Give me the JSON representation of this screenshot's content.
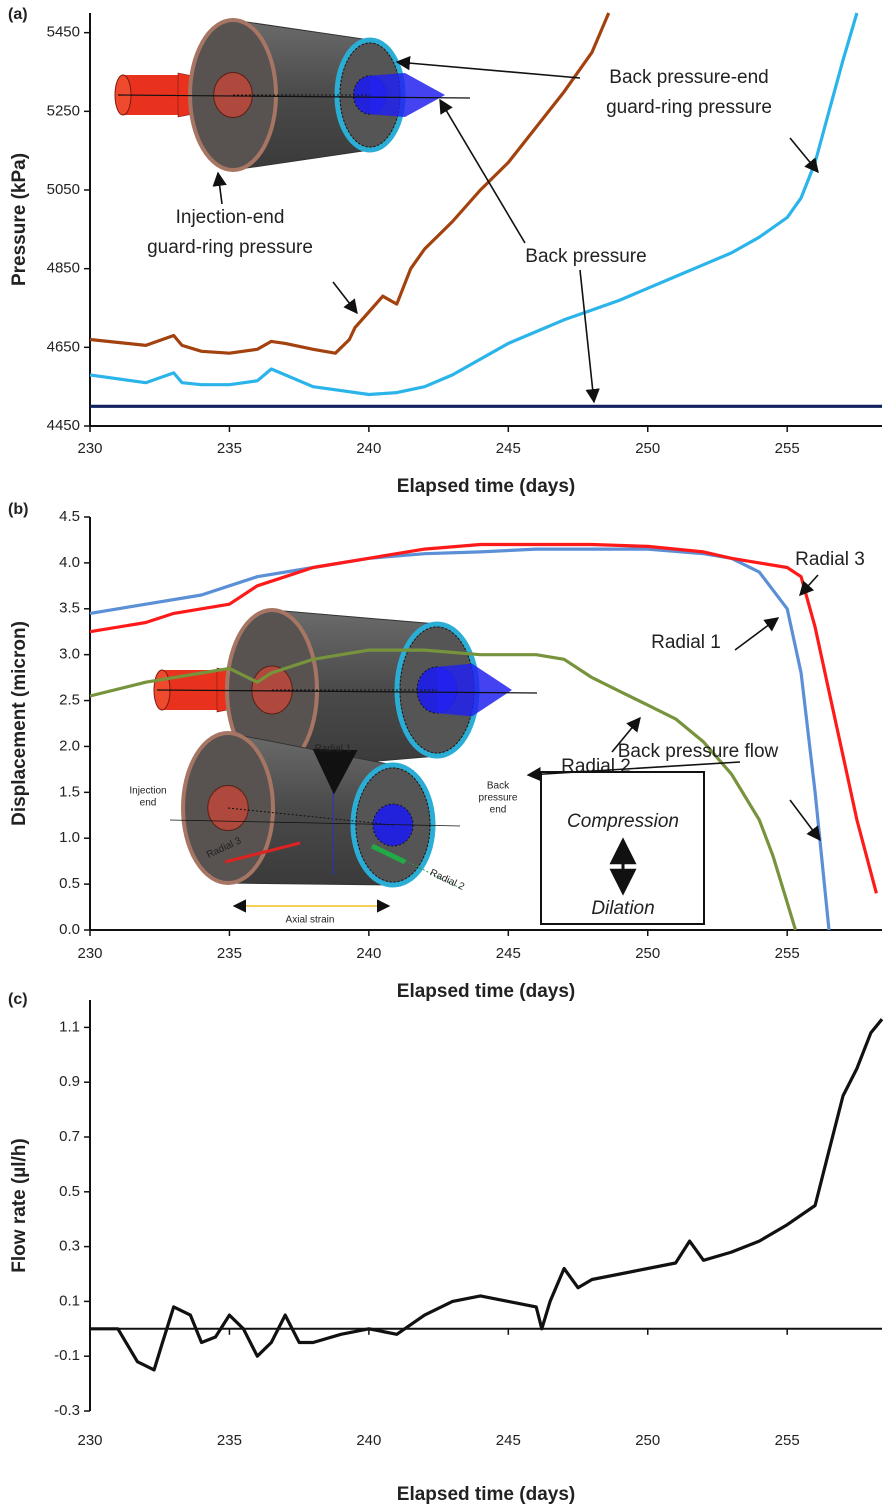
{
  "chart_data": [
    {
      "type": "line",
      "panel_label": "(a)",
      "x_label": "Elapsed time (days)",
      "y_label": "Pressure (kPa)",
      "xlim": [
        230,
        258.4
      ],
      "xticks": [
        230,
        235,
        240,
        245,
        250,
        255
      ],
      "ylim": [
        4450,
        5500
      ],
      "yticks": [
        4450,
        4650,
        4850,
        5050,
        5250,
        5450
      ],
      "series": [
        {
          "name": [
            "Injection-end",
            "guard-ring pressure"
          ],
          "color": "#a3420f",
          "x": [
            230,
            232,
            233,
            233.3,
            234,
            235,
            236,
            236.5,
            237,
            238,
            238.8,
            239.3,
            239.5,
            240,
            240.5,
            241,
            241.5,
            242,
            243,
            244,
            245,
            246,
            247,
            248,
            248.6
          ],
          "values": [
            4670,
            4655,
            4680,
            4655,
            4640,
            4635,
            4645,
            4665,
            4660,
            4645,
            4635,
            4670,
            4700,
            4740,
            4780,
            4760,
            4850,
            4900,
            4970,
            5050,
            5120,
            5210,
            5300,
            5400,
            5500
          ]
        },
        {
          "name": [
            "Back pressure-end",
            "guard-ring pressure"
          ],
          "color": "#2bb4ea",
          "x": [
            230,
            232,
            233,
            233.3,
            234,
            235,
            236,
            236.5,
            237,
            238,
            239,
            240,
            241,
            242,
            243,
            244,
            245,
            246,
            247,
            248,
            249,
            250,
            251,
            252,
            253,
            254,
            255,
            255.5,
            256,
            256.5,
            257,
            257.5
          ],
          "values": [
            4580,
            4560,
            4585,
            4560,
            4555,
            4555,
            4565,
            4595,
            4580,
            4550,
            4540,
            4530,
            4535,
            4550,
            4580,
            4620,
            4660,
            4690,
            4720,
            4745,
            4770,
            4800,
            4830,
            4860,
            4890,
            4930,
            4980,
            5030,
            5120,
            5250,
            5380,
            5500
          ]
        },
        {
          "name": [
            "Back pressure"
          ],
          "color": "#122060",
          "x": [
            230,
            235,
            240,
            245,
            250,
            255,
            258.4
          ],
          "values": [
            4500,
            4500,
            4500,
            4500,
            4500,
            4500,
            4500
          ]
        }
      ]
    },
    {
      "type": "line",
      "panel_label": "(b)",
      "x_label": "Elapsed time (days)",
      "y_label": "Displacement (micron)",
      "xlim": [
        230,
        258.4
      ],
      "xticks": [
        230,
        235,
        240,
        245,
        250,
        255
      ],
      "ylim": [
        0,
        4.5
      ],
      "yticks": [
        {
          "value": 0,
          "label": "0.0"
        },
        0.5,
        {
          "value": 1,
          "label": "1.0"
        },
        1.5,
        {
          "value": 2,
          "label": "2.0"
        },
        2.5,
        {
          "value": 3,
          "label": "3.0"
        },
        3.5,
        {
          "value": 4,
          "label": "4.0"
        },
        4.5
      ],
      "series": [
        {
          "name": "Radial 1",
          "color": "#5b8fd6",
          "x": [
            230,
            232,
            234,
            235,
            236,
            238,
            240,
            242,
            244,
            246,
            248,
            250,
            252,
            253,
            254,
            255,
            255.5,
            256,
            256.5
          ],
          "values": [
            3.45,
            3.55,
            3.65,
            3.75,
            3.85,
            3.95,
            4.05,
            4.1,
            4.12,
            4.15,
            4.15,
            4.15,
            4.1,
            4.05,
            3.9,
            3.5,
            2.8,
            1.5,
            0
          ]
        },
        {
          "name": "Radial 2",
          "color": "#77933c",
          "x": [
            230,
            232,
            234,
            235,
            236,
            236.5,
            238,
            240,
            242,
            244,
            246,
            247,
            248,
            249,
            250,
            251,
            252,
            253,
            254,
            254.5,
            255,
            255.3
          ],
          "values": [
            2.55,
            2.7,
            2.8,
            2.85,
            2.7,
            2.8,
            2.95,
            3.05,
            3.05,
            3.0,
            3.0,
            2.95,
            2.75,
            2.6,
            2.45,
            2.3,
            2.05,
            1.7,
            1.2,
            0.8,
            0.3,
            0
          ]
        },
        {
          "name": "Radial 3",
          "color": "#ff1a1a",
          "x": [
            230,
            232,
            233,
            235,
            236,
            237,
            238,
            240,
            242,
            244,
            246,
            248,
            250,
            252,
            253,
            254,
            255,
            255.5,
            256,
            256.5,
            257,
            257.5,
            258.2
          ],
          "values": [
            3.25,
            3.35,
            3.45,
            3.55,
            3.75,
            3.85,
            3.95,
            4.05,
            4.15,
            4.2,
            4.2,
            4.2,
            4.18,
            4.12,
            4.05,
            4.0,
            3.95,
            3.85,
            3.3,
            2.6,
            1.9,
            1.2,
            0.4
          ]
        }
      ],
      "inset_labels": [
        "Radial 1",
        "Injection",
        "end",
        "Back",
        "pressure",
        "end",
        "Radial 3",
        "Radial 2",
        "Axial strain"
      ],
      "box": [
        "Compression",
        "Dilation"
      ]
    },
    {
      "type": "line",
      "panel_label": "(c)",
      "x_label": "Elapsed time (days)",
      "y_label": "Flow rate (µl/h)",
      "xlim": [
        230,
        258.4
      ],
      "xticks": [
        230,
        235,
        240,
        245,
        250,
        255
      ],
      "ylim": [
        -0.3,
        1.2
      ],
      "yticks": [
        -0.3,
        -0.1,
        0.1,
        0.3,
        0.5,
        0.7,
        0.9,
        1.1
      ],
      "series": [
        {
          "name": "Back pressure flow",
          "color": "#111111",
          "x": [
            230,
            231,
            231.7,
            232.3,
            232.6,
            233,
            233.6,
            234,
            234.5,
            235,
            235.5,
            236,
            236.5,
            237,
            237.5,
            238,
            239,
            240,
            241,
            242,
            243,
            244,
            245,
            246,
            246.2,
            246.5,
            247,
            247.5,
            248,
            249,
            250,
            251,
            251.5,
            252,
            253,
            254,
            255,
            256,
            256.5,
            257,
            257.5,
            258,
            258.4
          ],
          "values": [
            0,
            0,
            -0.12,
            -0.15,
            -0.05,
            0.08,
            0.05,
            -0.05,
            -0.03,
            0.05,
            0,
            -0.1,
            -0.05,
            0.05,
            -0.05,
            -0.05,
            -0.02,
            0,
            -0.02,
            0.05,
            0.1,
            0.12,
            0.1,
            0.08,
            0,
            0.1,
            0.22,
            0.15,
            0.18,
            0.2,
            0.22,
            0.24,
            0.32,
            0.25,
            0.28,
            0.32,
            0.38,
            0.45,
            0.65,
            0.85,
            0.95,
            1.08,
            1.13
          ]
        }
      ]
    }
  ]
}
